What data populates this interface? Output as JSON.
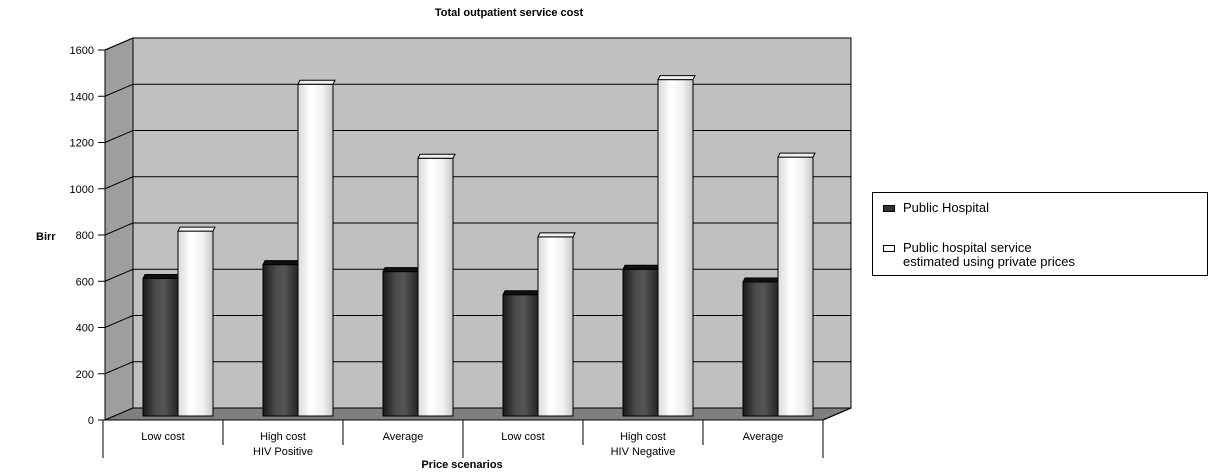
{
  "chart_data": {
    "type": "bar",
    "title": "Total outpatient service cost",
    "xlabel": "Price scenarios",
    "ylabel": "Birr",
    "ylim": [
      0,
      1600
    ],
    "yticks": [
      "0",
      "200",
      "400",
      "600",
      "800",
      "1000",
      "1200",
      "1400",
      "1600"
    ],
    "groups": [
      {
        "label": "HIV Positive",
        "categories": [
          "Low cost",
          "High cost",
          "Average"
        ]
      },
      {
        "label": "HIV Negative",
        "categories": [
          "Low cost",
          "High cost",
          "Average"
        ]
      }
    ],
    "categories": [
      "Low cost",
      "High cost",
      "Average",
      "Low cost",
      "High cost",
      "Average"
    ],
    "series": [
      {
        "name": "Public Hospital",
        "values": [
          560,
          620,
          590,
          490,
          600,
          545
        ],
        "color": "#333333"
      },
      {
        "name": "Public hospital service\nestimated  using private prices",
        "values": [
          765,
          1400,
          1080,
          740,
          1420,
          1085
        ],
        "color": "#ffffff"
      }
    ],
    "grid": true,
    "legend_position": "right"
  }
}
